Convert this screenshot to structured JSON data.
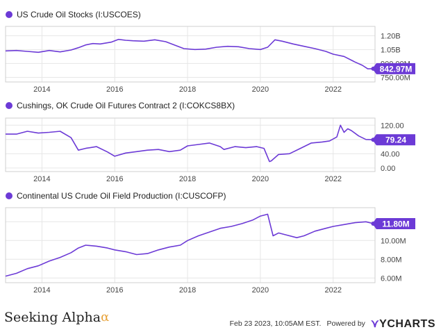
{
  "colors": {
    "series": "#6c3ad6",
    "grid": "#e6e6e6",
    "frame": "#cfcfcf",
    "label_text": "#ffffff"
  },
  "footer": {
    "brand": "Seeking Alpha",
    "brand_mark": "α",
    "timestamp": "Feb 23 2023, 10:05AM EST.",
    "powered_by": "Powered by",
    "logo": "YCHARTS"
  },
  "chart_data": [
    {
      "type": "line",
      "title": "US Crude Oil Stocks (I:USCOES)",
      "x_ticks": [
        "2014",
        "2016",
        "2018",
        "2020",
        "2022"
      ],
      "y_ticks": [
        "1.20B",
        "1.05B",
        "900.00M",
        "750.00M"
      ],
      "y_tick_values": [
        1200,
        1050,
        900,
        750
      ],
      "ylim": [
        700,
        1300
      ],
      "y_unit": "M",
      "last_value_label": "842.97M",
      "series": [
        {
          "x": [
            2013.0,
            2013.3,
            2013.6,
            2013.9,
            2014.2,
            2014.5,
            2014.8,
            2015.0,
            2015.2,
            2015.4,
            2015.6,
            2015.9,
            2016.1,
            2016.3,
            2016.5,
            2016.8,
            2017.1,
            2017.4,
            2017.7,
            2017.9,
            2018.2,
            2018.5,
            2018.8,
            2019.1,
            2019.4,
            2019.7,
            2020.0,
            2020.2,
            2020.4,
            2020.6,
            2020.9,
            2021.2,
            2021.5,
            2021.8,
            2022.0,
            2022.3,
            2022.6,
            2022.8,
            2022.95,
            2023.1
          ],
          "values": [
            1035,
            1040,
            1030,
            1020,
            1040,
            1025,
            1045,
            1070,
            1100,
            1115,
            1110,
            1130,
            1160,
            1150,
            1145,
            1140,
            1155,
            1135,
            1090,
            1060,
            1050,
            1055,
            1075,
            1085,
            1080,
            1060,
            1050,
            1075,
            1155,
            1140,
            1110,
            1085,
            1060,
            1030,
            1000,
            975,
            915,
            880,
            842,
            842.97
          ]
        }
      ]
    },
    {
      "type": "line",
      "title": "Cushings, OK Crude Oil Futures Contract 2 (I:COKCS8BX)",
      "x_ticks": [
        "2014",
        "2016",
        "2018",
        "2020",
        "2022"
      ],
      "y_ticks": [
        "120.00",
        "80.00",
        "40.00",
        "0.00"
      ],
      "y_tick_values": [
        120,
        80,
        40,
        0
      ],
      "ylim": [
        -10,
        140
      ],
      "y_unit": "",
      "last_value_label": "79.24",
      "series": [
        {
          "x": [
            2013.0,
            2013.3,
            2013.6,
            2013.9,
            2014.2,
            2014.5,
            2014.8,
            2015.0,
            2015.2,
            2015.5,
            2015.8,
            2016.0,
            2016.3,
            2016.6,
            2016.9,
            2017.2,
            2017.5,
            2017.8,
            2018.0,
            2018.3,
            2018.6,
            2018.9,
            2019.0,
            2019.3,
            2019.6,
            2019.9,
            2020.1,
            2020.25,
            2020.3,
            2020.5,
            2020.8,
            2021.1,
            2021.4,
            2021.7,
            2021.9,
            2022.1,
            2022.2,
            2022.3,
            2022.4,
            2022.5,
            2022.7,
            2022.9,
            2023.1
          ],
          "values": [
            95,
            95,
            103,
            98,
            100,
            103,
            85,
            50,
            55,
            60,
            45,
            33,
            42,
            46,
            50,
            52,
            46,
            50,
            62,
            66,
            70,
            60,
            52,
            60,
            57,
            60,
            55,
            18,
            20,
            38,
            40,
            55,
            70,
            73,
            76,
            87,
            120,
            100,
            110,
            105,
            90,
            80,
            79.24
          ]
        }
      ]
    },
    {
      "type": "line",
      "title": "Continental US Crude Oil Field Production (I:CUSCOFP)",
      "x_ticks": [
        "2014",
        "2016",
        "2018",
        "2020",
        "2022"
      ],
      "y_ticks": [
        "12.00M",
        "10.00M",
        "8.00M",
        "6.00M"
      ],
      "y_tick_values": [
        12,
        10,
        8,
        6
      ],
      "ylim": [
        5.5,
        13.5
      ],
      "y_unit": "M",
      "last_value_label": "11.80M",
      "series": [
        {
          "x": [
            2013.0,
            2013.3,
            2013.6,
            2013.9,
            2014.2,
            2014.5,
            2014.8,
            2015.0,
            2015.2,
            2015.5,
            2015.8,
            2016.0,
            2016.3,
            2016.6,
            2016.9,
            2017.2,
            2017.5,
            2017.8,
            2018.0,
            2018.3,
            2018.6,
            2018.9,
            2019.2,
            2019.5,
            2019.8,
            2020.0,
            2020.2,
            2020.35,
            2020.5,
            2020.7,
            2021.0,
            2021.2,
            2021.5,
            2021.8,
            2022.0,
            2022.3,
            2022.6,
            2022.9,
            2023.1
          ],
          "values": [
            6.2,
            6.5,
            7.0,
            7.3,
            7.8,
            8.2,
            8.7,
            9.2,
            9.5,
            9.4,
            9.2,
            9.0,
            8.8,
            8.5,
            8.6,
            9.0,
            9.3,
            9.5,
            10.0,
            10.5,
            10.9,
            11.3,
            11.5,
            11.8,
            12.2,
            12.6,
            12.8,
            10.5,
            10.8,
            10.6,
            10.3,
            10.5,
            11.0,
            11.3,
            11.5,
            11.7,
            11.9,
            12.0,
            11.8
          ]
        }
      ]
    }
  ]
}
